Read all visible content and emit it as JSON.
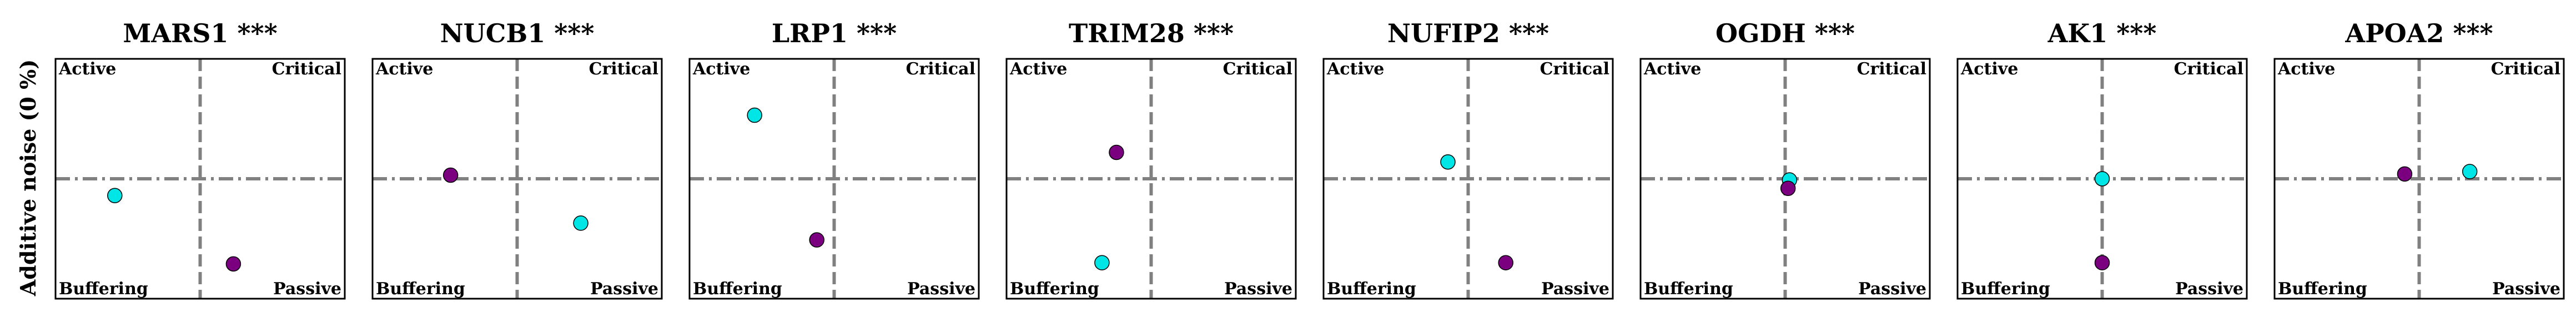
{
  "figure": {
    "ylabel": "Additive noise (0 %)"
  },
  "colors": {
    "series_a": "#00e5e5",
    "series_b": "#7a0080",
    "guide": "#808080"
  },
  "chart_data": [
    {
      "type": "scatter",
      "title": "MARS1 ***",
      "quadrants": {
        "tl": "Active",
        "tr": "Critical",
        "bl": "Buffering",
        "br": "Passive"
      },
      "xlim": [
        -1,
        1
      ],
      "ylim": [
        -1,
        1
      ],
      "grid": false,
      "series": [
        {
          "color": "#00e5e5",
          "points": [
            {
              "x": -0.59,
              "y": -0.14
            }
          ]
        },
        {
          "color": "#7a0080",
          "points": [
            {
              "x": 0.23,
              "y": -0.71
            }
          ]
        }
      ]
    },
    {
      "type": "scatter",
      "title": "NUCB1 ***",
      "quadrants": {
        "tl": "Active",
        "tr": "Critical",
        "bl": "Buffering",
        "br": "Passive"
      },
      "xlim": [
        -1,
        1
      ],
      "ylim": [
        -1,
        1
      ],
      "grid": false,
      "series": [
        {
          "color": "#00e5e5",
          "points": [
            {
              "x": 0.44,
              "y": -0.37
            }
          ]
        },
        {
          "color": "#7a0080",
          "points": [
            {
              "x": -0.46,
              "y": 0.03
            }
          ]
        }
      ]
    },
    {
      "type": "scatter",
      "title": "LRP1 ***",
      "quadrants": {
        "tl": "Active",
        "tr": "Critical",
        "bl": "Buffering",
        "br": "Passive"
      },
      "xlim": [
        -1,
        1
      ],
      "ylim": [
        -1,
        1
      ],
      "grid": false,
      "series": [
        {
          "color": "#00e5e5",
          "points": [
            {
              "x": -0.55,
              "y": 0.53
            }
          ]
        },
        {
          "color": "#7a0080",
          "points": [
            {
              "x": -0.12,
              "y": -0.51
            }
          ]
        }
      ]
    },
    {
      "type": "scatter",
      "title": "TRIM28 ***",
      "quadrants": {
        "tl": "Active",
        "tr": "Critical",
        "bl": "Buffering",
        "br": "Passive"
      },
      "xlim": [
        -1,
        1
      ],
      "ylim": [
        -1,
        1
      ],
      "grid": false,
      "series": [
        {
          "color": "#00e5e5",
          "points": [
            {
              "x": -0.34,
              "y": -0.7
            }
          ]
        },
        {
          "color": "#7a0080",
          "points": [
            {
              "x": -0.24,
              "y": 0.22
            }
          ]
        }
      ]
    },
    {
      "type": "scatter",
      "title": "NUFIP2 ***",
      "quadrants": {
        "tl": "Active",
        "tr": "Critical",
        "bl": "Buffering",
        "br": "Passive"
      },
      "xlim": [
        -1,
        1
      ],
      "ylim": [
        -1,
        1
      ],
      "grid": false,
      "series": [
        {
          "color": "#00e5e5",
          "points": [
            {
              "x": -0.14,
              "y": 0.14
            }
          ]
        },
        {
          "color": "#7a0080",
          "points": [
            {
              "x": 0.26,
              "y": -0.7
            }
          ]
        }
      ]
    },
    {
      "type": "scatter",
      "title": "OGDH ***",
      "quadrants": {
        "tl": "Active",
        "tr": "Critical",
        "bl": "Buffering",
        "br": "Passive"
      },
      "xlim": [
        -1,
        1
      ],
      "ylim": [
        -1,
        1
      ],
      "grid": false,
      "series": [
        {
          "color": "#00e5e5",
          "points": [
            {
              "x": 0.03,
              "y": -0.01
            }
          ]
        },
        {
          "color": "#7a0080",
          "points": [
            {
              "x": 0.02,
              "y": -0.08
            }
          ]
        }
      ]
    },
    {
      "type": "scatter",
      "title": "AK1 ***",
      "quadrants": {
        "tl": "Active",
        "tr": "Critical",
        "bl": "Buffering",
        "br": "Passive"
      },
      "xlim": [
        -1,
        1
      ],
      "ylim": [
        -1,
        1
      ],
      "grid": false,
      "series": [
        {
          "color": "#00e5e5",
          "points": [
            {
              "x": 0.0,
              "y": 0.0
            }
          ]
        },
        {
          "color": "#7a0080",
          "points": [
            {
              "x": 0.0,
              "y": -0.7
            }
          ]
        }
      ]
    },
    {
      "type": "scatter",
      "title": "APOA2 ***",
      "quadrants": {
        "tl": "Active",
        "tr": "Critical",
        "bl": "Buffering",
        "br": "Passive"
      },
      "xlim": [
        -1,
        1
      ],
      "ylim": [
        -1,
        1
      ],
      "grid": false,
      "series": [
        {
          "color": "#00e5e5",
          "points": [
            {
              "x": 0.35,
              "y": 0.06
            }
          ]
        },
        {
          "color": "#7a0080",
          "points": [
            {
              "x": -0.1,
              "y": 0.04
            }
          ]
        }
      ]
    }
  ]
}
